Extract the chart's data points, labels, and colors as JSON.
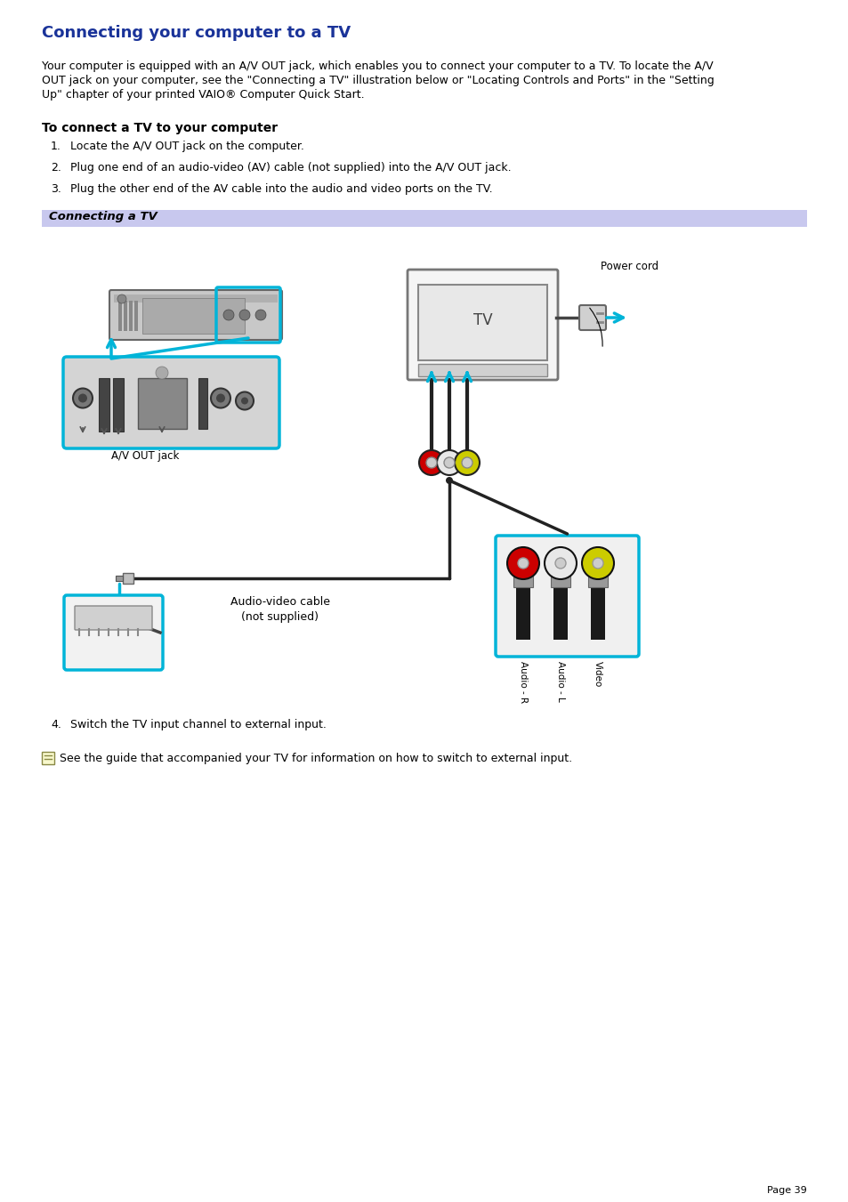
{
  "title": "Connecting your computer to a TV",
  "title_color": "#1a3399",
  "body_line1": "Your computer is equipped with an A/V OUT jack, which enables you to connect your computer to a TV. To locate the A/V",
  "body_line2": "OUT jack on your computer, see the \"Connecting a TV\" illustration below or \"Locating Controls and Ports\" in the \"Setting",
  "body_line3": "Up\" chapter of your printed VAIO® Computer Quick Start.",
  "subtitle": "To connect a TV to your computer",
  "step1": "Locate the A/V OUT jack on the computer.",
  "step2": "Plug one end of an audio-video (AV) cable (not supplied) into the A/V OUT jack.",
  "step3": "Plug the other end of the AV cable into the audio and video ports on the TV.",
  "step4": "Switch the TV input channel to external input.",
  "section_label": "Connecting a TV",
  "section_bg": "#c8c8ee",
  "note_text": "See the guide that accompanied your TV for information on how to switch to external input.",
  "page_number": "Page 39",
  "bg_color": "#ffffff",
  "text_color": "#000000",
  "label_av": "A/V OUT jack",
  "label_cable": "Audio-video cable\n(not supplied)",
  "label_power": "Power cord",
  "label_audio_r": "Audio - R",
  "label_audio_l": "Audio - L",
  "label_video": "Video",
  "label_tv": "TV",
  "cyan": "#00b4d8",
  "dark_gray": "#555555",
  "mid_gray": "#aaaaaa",
  "light_gray": "#d8d8d8",
  "laptop_gray": "#c0c0c0",
  "panel_gray": "#d0d0d0"
}
